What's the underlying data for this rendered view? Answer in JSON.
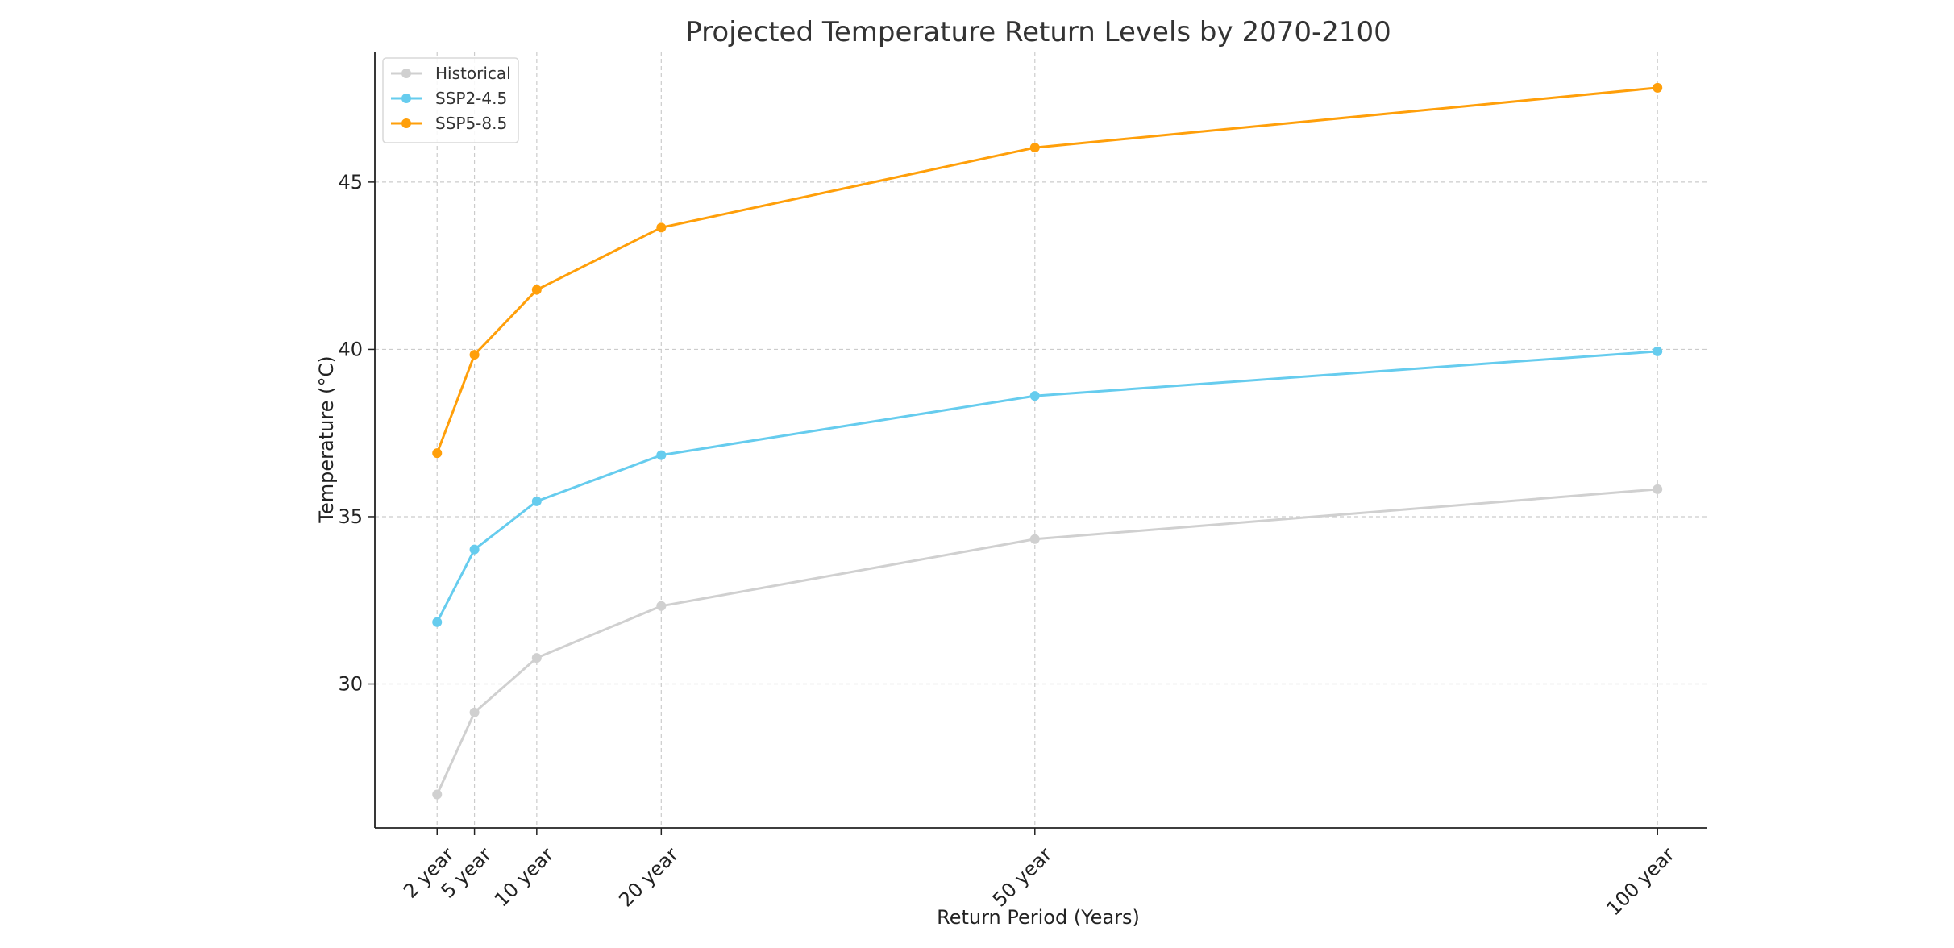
{
  "chart_data": {
    "type": "line",
    "title": "Projected Temperature Return Levels by 2070-2100",
    "xlabel": "Return Period (Years)",
    "ylabel": "Temperature (°C)",
    "x_values": [
      2,
      5,
      10,
      20,
      50,
      100
    ],
    "categories": [
      "2 year",
      "5 year",
      "10 year",
      "20 year",
      "50 year",
      "100 year"
    ],
    "yticks": [
      30,
      35,
      40,
      45
    ],
    "ylim": [
      25.7,
      48.9
    ],
    "xlim": [
      -3,
      104
    ],
    "grid": true,
    "legend_position": "top-left",
    "series": [
      {
        "name": "Historical",
        "color": "#d0d0d0",
        "values": [
          26.7,
          29.15,
          30.78,
          32.33,
          34.33,
          35.82
        ]
      },
      {
        "name": "SSP2-4.5",
        "color": "#66ccee",
        "values": [
          31.85,
          34.02,
          35.46,
          36.84,
          38.61,
          39.94
        ]
      },
      {
        "name": "SSP5-8.5",
        "color": "#ff9f0a",
        "values": [
          36.9,
          39.84,
          41.78,
          43.64,
          46.03,
          47.82
        ]
      }
    ]
  }
}
